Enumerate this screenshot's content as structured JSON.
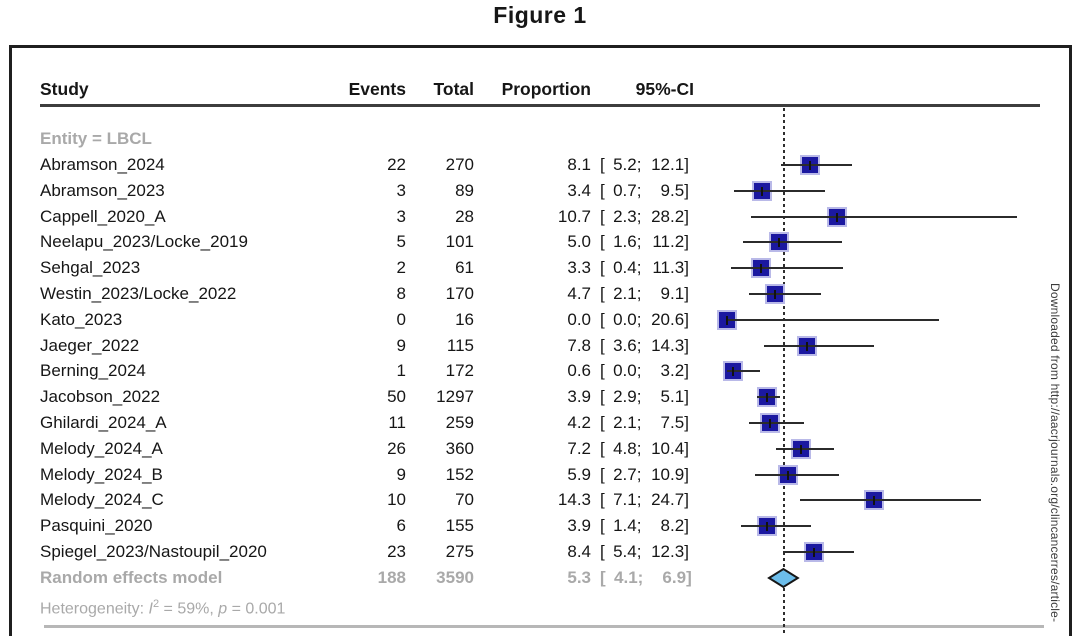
{
  "page": {
    "title": "Figure 1",
    "watermark": "Downloaded from http://aacrjournals.org/clincancerres/article-"
  },
  "table": {
    "columns": {
      "study": "Study",
      "events": "Events",
      "total": "Total",
      "proportion": "Proportion",
      "ci": "95%-CI"
    }
  },
  "chart_data": {
    "type": "forest",
    "title": "Figure 1",
    "group_label": "Entity = LBCL",
    "proportion_unit": "%",
    "xlim": [
      0,
      30
    ],
    "grid": false,
    "reference_line": "random effects pooled estimate",
    "studies": [
      {
        "study": "Abramson_2024",
        "events": 22,
        "total": 270,
        "proportion": 8.1,
        "ci_lower": 5.2,
        "ci_upper": 12.1
      },
      {
        "study": "Abramson_2023",
        "events": 3,
        "total": 89,
        "proportion": 3.4,
        "ci_lower": 0.7,
        "ci_upper": 9.5
      },
      {
        "study": "Cappell_2020_A",
        "events": 3,
        "total": 28,
        "proportion": 10.7,
        "ci_lower": 2.3,
        "ci_upper": 28.2
      },
      {
        "study": "Neelapu_2023/Locke_2019",
        "events": 5,
        "total": 101,
        "proportion": 5.0,
        "ci_lower": 1.6,
        "ci_upper": 11.2
      },
      {
        "study": "Sehgal_2023",
        "events": 2,
        "total": 61,
        "proportion": 3.3,
        "ci_lower": 0.4,
        "ci_upper": 11.3
      },
      {
        "study": "Westin_2023/Locke_2022",
        "events": 8,
        "total": 170,
        "proportion": 4.7,
        "ci_lower": 2.1,
        "ci_upper": 9.1
      },
      {
        "study": "Kato_2023",
        "events": 0,
        "total": 16,
        "proportion": 0.0,
        "ci_lower": 0.0,
        "ci_upper": 20.6
      },
      {
        "study": "Jaeger_2022",
        "events": 9,
        "total": 115,
        "proportion": 7.8,
        "ci_lower": 3.6,
        "ci_upper": 14.3
      },
      {
        "study": "Berning_2024",
        "events": 1,
        "total": 172,
        "proportion": 0.6,
        "ci_lower": 0.0,
        "ci_upper": 3.2
      },
      {
        "study": "Jacobson_2022",
        "events": 50,
        "total": 1297,
        "proportion": 3.9,
        "ci_lower": 2.9,
        "ci_upper": 5.1
      },
      {
        "study": "Ghilardi_2024_A",
        "events": 11,
        "total": 259,
        "proportion": 4.2,
        "ci_lower": 2.1,
        "ci_upper": 7.5
      },
      {
        "study": "Melody_2024_A",
        "events": 26,
        "total": 360,
        "proportion": 7.2,
        "ci_lower": 4.8,
        "ci_upper": 10.4
      },
      {
        "study": "Melody_2024_B",
        "events": 9,
        "total": 152,
        "proportion": 5.9,
        "ci_lower": 2.7,
        "ci_upper": 10.9
      },
      {
        "study": "Melody_2024_C",
        "events": 10,
        "total": 70,
        "proportion": 14.3,
        "ci_lower": 7.1,
        "ci_upper": 24.7
      },
      {
        "study": "Pasquini_2020",
        "events": 6,
        "total": 155,
        "proportion": 3.9,
        "ci_lower": 1.4,
        "ci_upper": 8.2
      },
      {
        "study": "Spiegel_2023/Nastoupil_2020",
        "events": 23,
        "total": 275,
        "proportion": 8.4,
        "ci_lower": 5.4,
        "ci_upper": 12.3
      }
    ],
    "summary": {
      "study": "Random effects model",
      "events": 188,
      "total": 3590,
      "proportion": 5.3,
      "ci_lower": 4.1,
      "ci_upper": 6.9
    },
    "heterogeneity": {
      "prefix": "Heterogeneity: ",
      "stat_symbol": "I",
      "stat_sup": "2",
      "stat_rest": " = 59%, ",
      "p_symbol": "p",
      "p_rest": " = 0.001"
    },
    "colors": {
      "square_fill": "#1b18a0",
      "square_border": "#b9b9e8",
      "diamond_fill": "#6cbdea",
      "diamond_stroke": "#161616",
      "gray_text": "#a9a9a9",
      "whisker": "#2b2b2b"
    }
  }
}
